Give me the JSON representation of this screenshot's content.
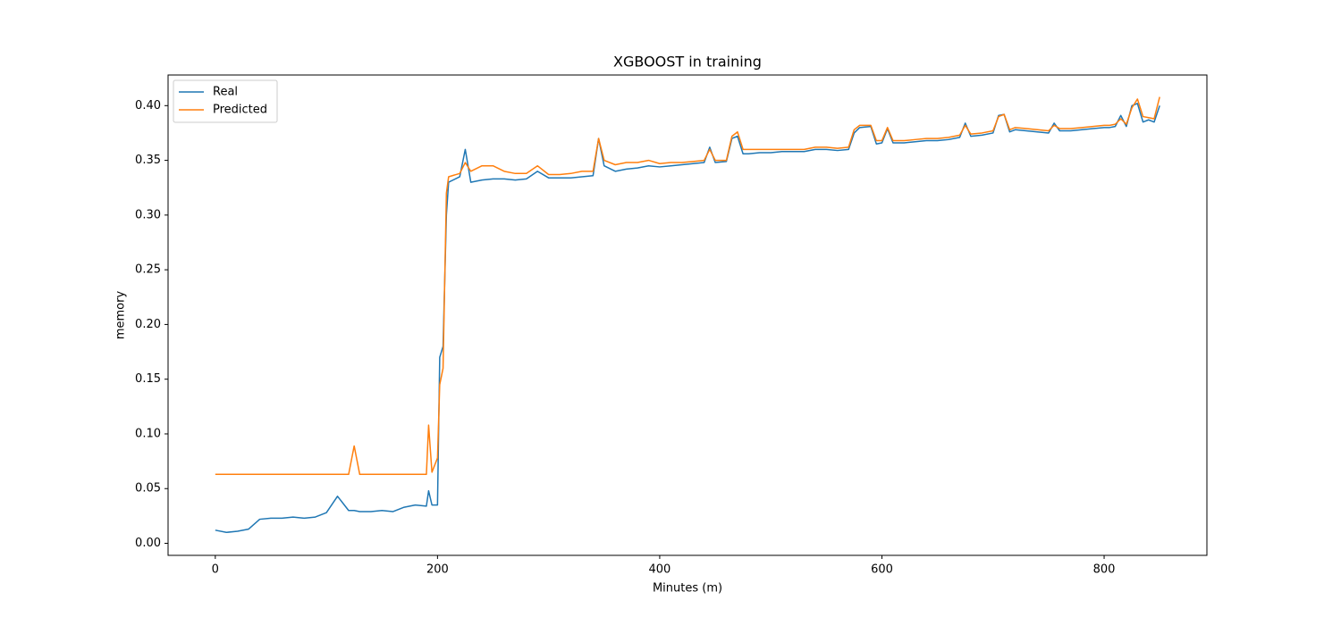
{
  "chart_data": {
    "type": "line",
    "title": "XGBOOST in training",
    "x_label": "Minutes (m)",
    "y_label": "memory",
    "x": [
      0,
      10,
      20,
      30,
      40,
      50,
      60,
      70,
      80,
      90,
      100,
      110,
      120,
      125,
      130,
      140,
      150,
      160,
      170,
      180,
      190,
      192,
      195,
      200,
      202,
      205,
      208,
      210,
      220,
      225,
      230,
      240,
      250,
      260,
      270,
      280,
      290,
      300,
      310,
      320,
      330,
      340,
      345,
      350,
      360,
      370,
      380,
      390,
      400,
      410,
      420,
      430,
      440,
      445,
      450,
      460,
      465,
      470,
      475,
      480,
      490,
      500,
      510,
      520,
      530,
      540,
      550,
      560,
      570,
      575,
      580,
      590,
      595,
      600,
      605,
      610,
      620,
      630,
      640,
      650,
      660,
      670,
      675,
      680,
      690,
      700,
      705,
      710,
      715,
      720,
      730,
      740,
      750,
      755,
      760,
      770,
      780,
      790,
      800,
      805,
      810,
      815,
      820,
      825,
      830,
      835,
      840,
      845,
      850
    ],
    "series": [
      {
        "name": "Real",
        "color": "#1f77b4",
        "values": [
          0.012,
          0.01,
          0.011,
          0.013,
          0.022,
          0.023,
          0.023,
          0.024,
          0.023,
          0.024,
          0.028,
          0.043,
          0.03,
          0.03,
          0.029,
          0.029,
          0.03,
          0.029,
          0.033,
          0.035,
          0.034,
          0.048,
          0.035,
          0.035,
          0.17,
          0.18,
          0.3,
          0.33,
          0.335,
          0.36,
          0.33,
          0.332,
          0.333,
          0.333,
          0.332,
          0.333,
          0.34,
          0.334,
          0.334,
          0.334,
          0.335,
          0.336,
          0.37,
          0.345,
          0.34,
          0.342,
          0.343,
          0.345,
          0.344,
          0.345,
          0.346,
          0.347,
          0.348,
          0.362,
          0.348,
          0.349,
          0.37,
          0.372,
          0.356,
          0.356,
          0.357,
          0.357,
          0.358,
          0.358,
          0.358,
          0.36,
          0.36,
          0.359,
          0.36,
          0.375,
          0.38,
          0.381,
          0.365,
          0.366,
          0.379,
          0.366,
          0.366,
          0.367,
          0.368,
          0.368,
          0.369,
          0.371,
          0.384,
          0.372,
          0.373,
          0.375,
          0.391,
          0.392,
          0.376,
          0.378,
          0.377,
          0.376,
          0.375,
          0.384,
          0.377,
          0.377,
          0.378,
          0.379,
          0.38,
          0.38,
          0.381,
          0.391,
          0.381,
          0.4,
          0.402,
          0.385,
          0.387,
          0.385,
          0.4
        ]
      },
      {
        "name": "Predicted",
        "color": "#ff7f0e",
        "values": [
          0.063,
          0.063,
          0.063,
          0.063,
          0.063,
          0.063,
          0.063,
          0.063,
          0.063,
          0.063,
          0.063,
          0.063,
          0.063,
          0.089,
          0.063,
          0.063,
          0.063,
          0.063,
          0.063,
          0.063,
          0.063,
          0.108,
          0.065,
          0.078,
          0.145,
          0.16,
          0.32,
          0.335,
          0.338,
          0.348,
          0.34,
          0.345,
          0.345,
          0.34,
          0.338,
          0.338,
          0.345,
          0.337,
          0.337,
          0.338,
          0.34,
          0.34,
          0.37,
          0.35,
          0.346,
          0.348,
          0.348,
          0.35,
          0.347,
          0.348,
          0.348,
          0.349,
          0.35,
          0.36,
          0.35,
          0.35,
          0.372,
          0.376,
          0.36,
          0.36,
          0.36,
          0.36,
          0.36,
          0.36,
          0.36,
          0.362,
          0.362,
          0.361,
          0.362,
          0.378,
          0.382,
          0.382,
          0.368,
          0.368,
          0.38,
          0.368,
          0.368,
          0.369,
          0.37,
          0.37,
          0.371,
          0.373,
          0.382,
          0.374,
          0.375,
          0.377,
          0.39,
          0.392,
          0.378,
          0.38,
          0.379,
          0.378,
          0.377,
          0.382,
          0.379,
          0.379,
          0.38,
          0.381,
          0.382,
          0.382,
          0.383,
          0.388,
          0.383,
          0.398,
          0.406,
          0.39,
          0.389,
          0.388,
          0.408
        ]
      }
    ],
    "xlim": [
      -42.5,
      892.5
    ],
    "ylim": [
      -0.011,
      0.428
    ],
    "xticks": [
      0,
      200,
      400,
      600,
      800
    ],
    "yticks": [
      {
        "value": 0,
        "label": "0.00"
      },
      0.05,
      {
        "value": 0.1,
        "label": "0.10"
      },
      0.15,
      {
        "value": 0.2,
        "label": "0.20"
      },
      0.25,
      {
        "value": 0.3,
        "label": "0.30"
      },
      0.35,
      {
        "value": 0.4,
        "label": "0.40"
      }
    ],
    "legend": "upper left"
  }
}
